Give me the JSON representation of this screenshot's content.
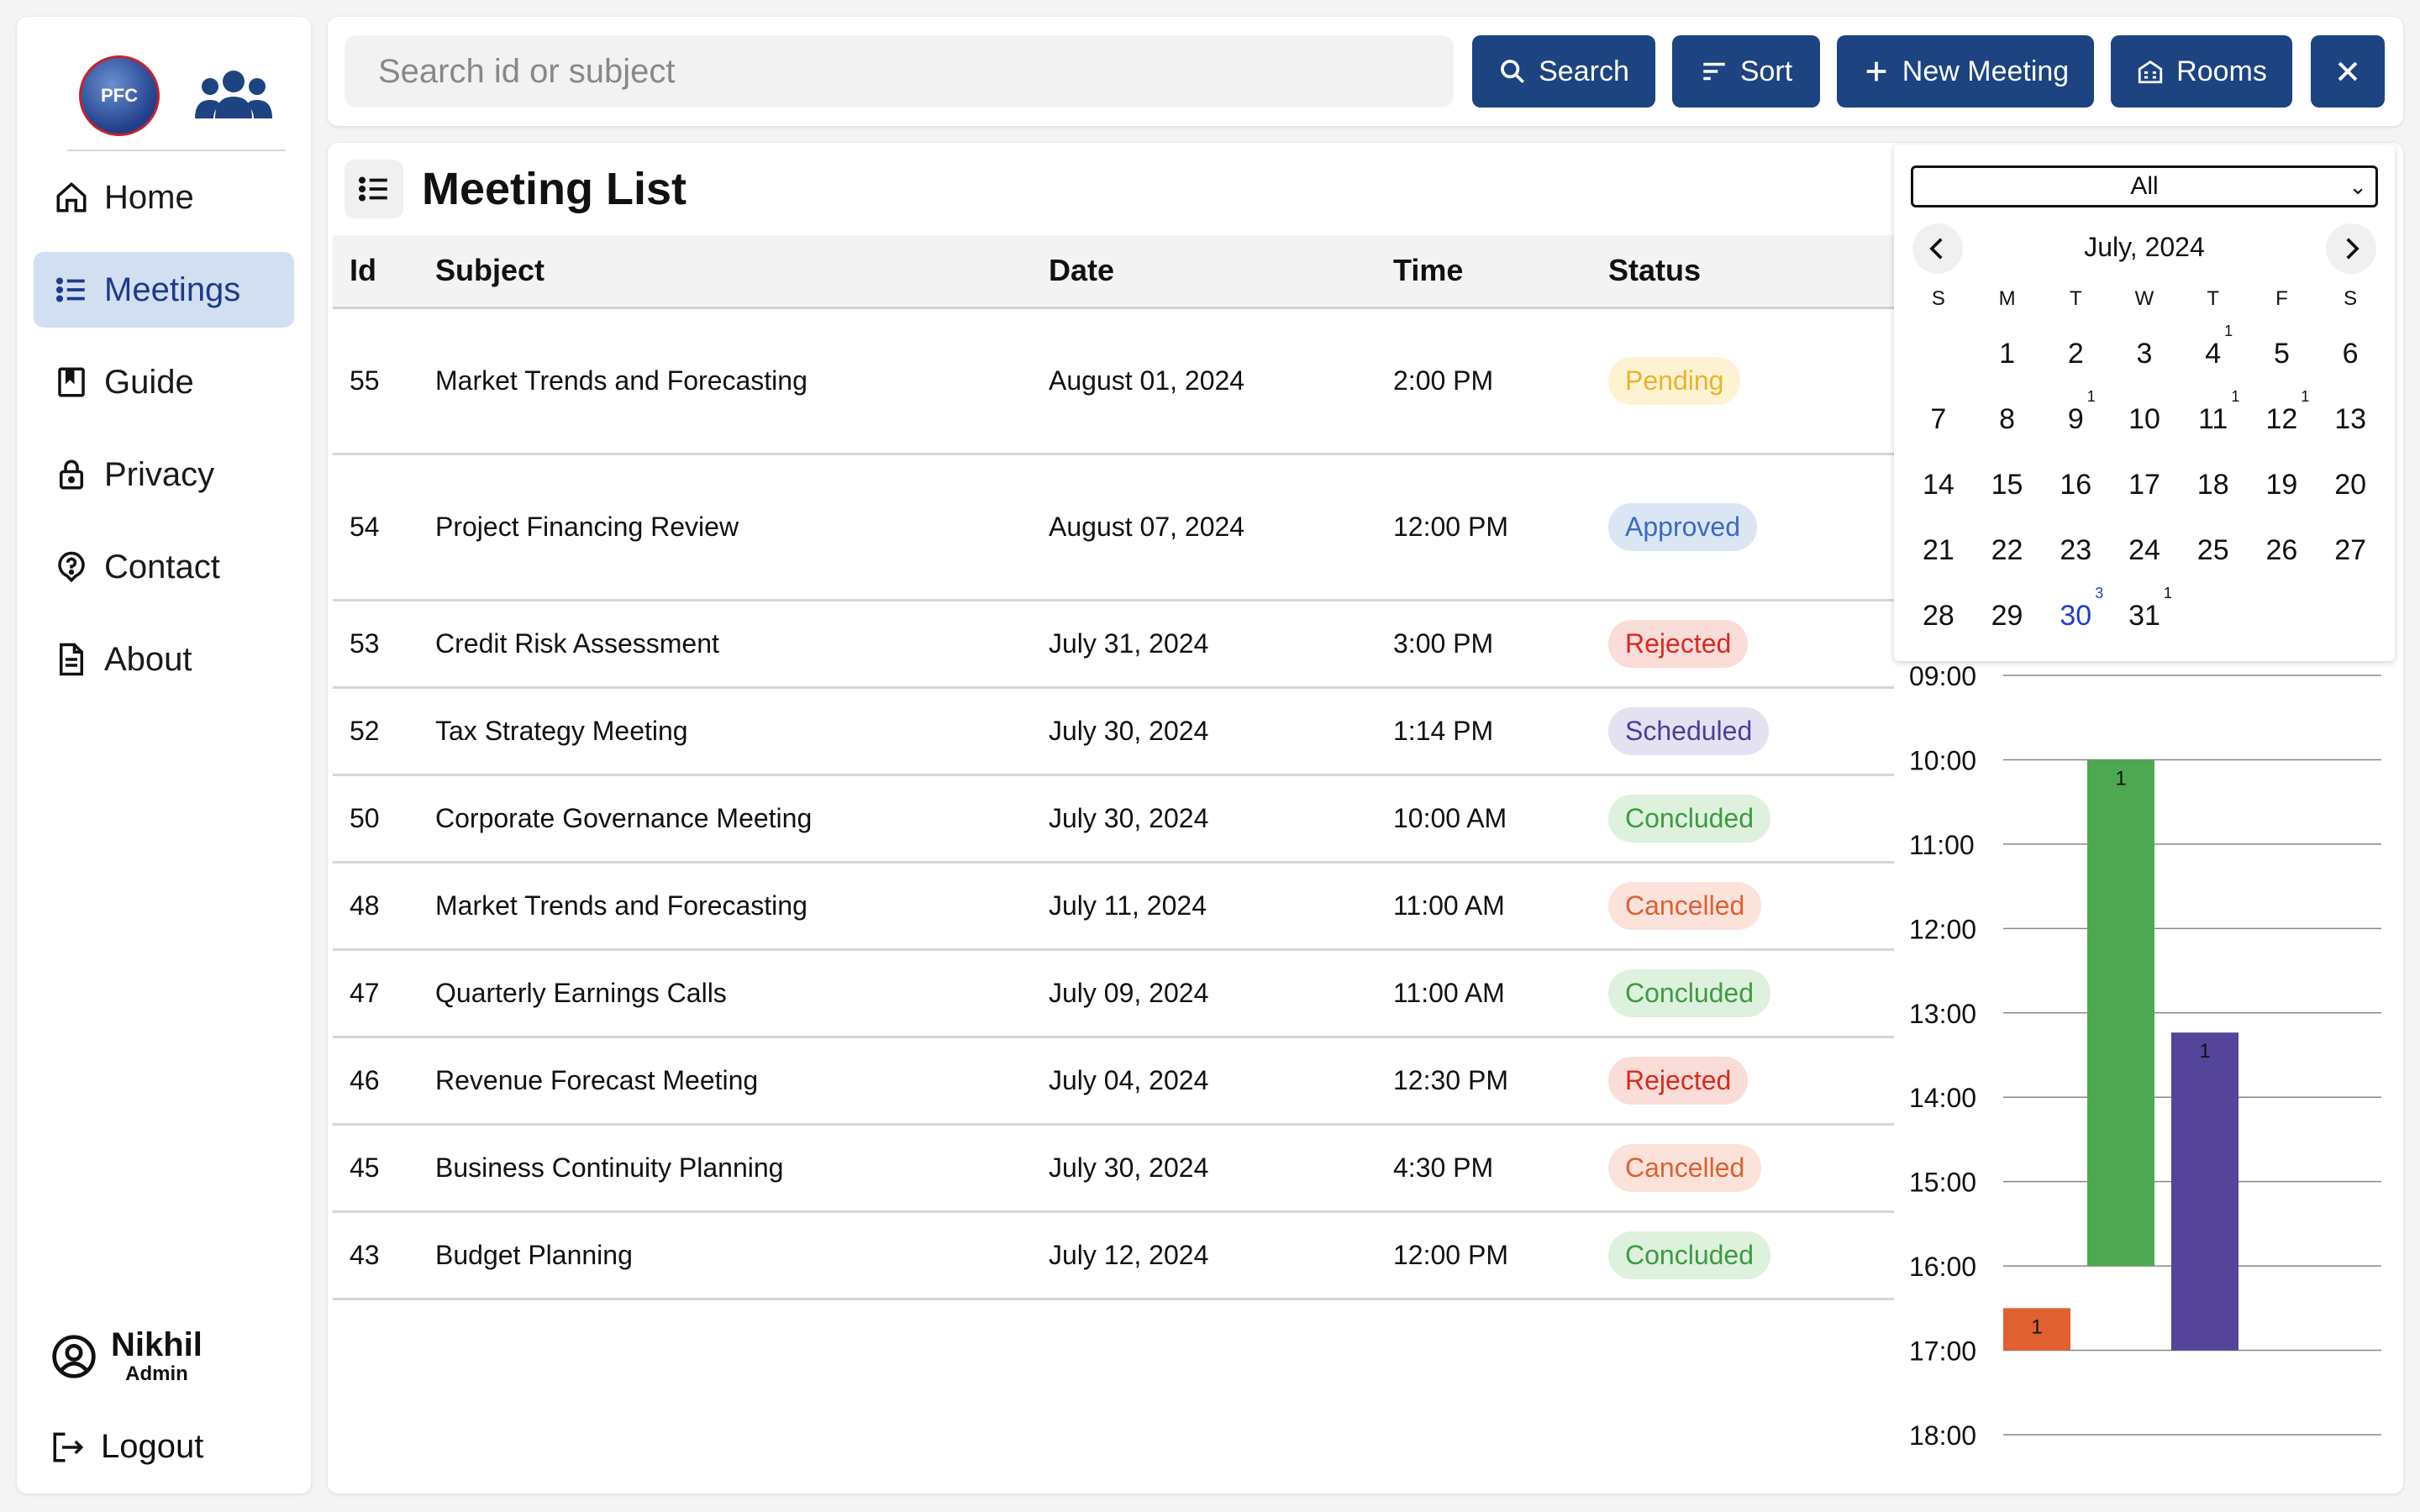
{
  "sidebar": {
    "nav": [
      {
        "label": "Home",
        "icon": "home-icon"
      },
      {
        "label": "Meetings",
        "icon": "list-icon"
      },
      {
        "label": "Guide",
        "icon": "book-icon"
      },
      {
        "label": "Privacy",
        "icon": "lock-icon"
      },
      {
        "label": "Contact",
        "icon": "help-icon"
      },
      {
        "label": "About",
        "icon": "document-icon"
      }
    ],
    "logo_text": "PFC",
    "user": {
      "name": "Nikhil",
      "role": "Admin"
    },
    "logout": "Logout"
  },
  "topbar": {
    "search_placeholder": "Search id or subject",
    "buttons": {
      "search": "Search",
      "sort": "Sort",
      "new_meeting": "New Meeting",
      "rooms": "Rooms"
    },
    "accent": "#1d4380"
  },
  "main": {
    "title": "Meeting List",
    "columns": [
      "Id",
      "Subject",
      "Date",
      "Time",
      "Status"
    ],
    "rows": [
      {
        "id": "55",
        "subject": "Market Trends and Forecasting",
        "date": "August 01, 2024",
        "time": "2:00 PM",
        "status": "Pending"
      },
      {
        "id": "54",
        "subject": "Project Financing Review",
        "date": "August 07, 2024",
        "time": "12:00 PM",
        "status": "Approved"
      },
      {
        "id": "53",
        "subject": "Credit Risk Assessment",
        "date": "July 31, 2024",
        "time": "3:00 PM",
        "status": "Rejected"
      },
      {
        "id": "52",
        "subject": "Tax Strategy Meeting",
        "date": "July 30, 2024",
        "time": "1:14 PM",
        "status": "Scheduled"
      },
      {
        "id": "50",
        "subject": "Corporate Governance Meeting",
        "date": "July 30, 2024",
        "time": "10:00 AM",
        "status": "Concluded"
      },
      {
        "id": "48",
        "subject": "Market Trends and Forecasting",
        "date": "July 11, 2024",
        "time": "11:00 AM",
        "status": "Cancelled"
      },
      {
        "id": "47",
        "subject": "Quarterly Earnings Calls",
        "date": "July 09, 2024",
        "time": "11:00 AM",
        "status": "Concluded"
      },
      {
        "id": "46",
        "subject": "Revenue Forecast Meeting",
        "date": "July 04, 2024",
        "time": "12:30 PM",
        "status": "Rejected"
      },
      {
        "id": "45",
        "subject": "Business Continuity Planning",
        "date": "July 30, 2024",
        "time": "4:30 PM",
        "status": "Cancelled"
      },
      {
        "id": "43",
        "subject": "Budget Planning",
        "date": "July 12, 2024",
        "time": "12:00 PM",
        "status": "Concluded"
      }
    ],
    "status_colors": {
      "Pending": {
        "bg": "#fdf3d3",
        "fg": "#e9b42a"
      },
      "Approved": {
        "bg": "#dbe6f4",
        "fg": "#3a6cbf"
      },
      "Rejected": {
        "bg": "#fadcd9",
        "fg": "#d62b20"
      },
      "Scheduled": {
        "bg": "#e4e1f1",
        "fg": "#4b3f99"
      },
      "Concluded": {
        "bg": "#ddf1dd",
        "fg": "#3f9a43"
      },
      "Cancelled": {
        "bg": "#fbe3dc",
        "fg": "#e0602f"
      }
    }
  },
  "calendar": {
    "filter": "All",
    "month_label": "July, 2024",
    "dow": [
      "S",
      "M",
      "T",
      "W",
      "T",
      "F",
      "S"
    ],
    "weeks": [
      [
        "",
        "1",
        "2",
        "3",
        "4",
        "5",
        "6"
      ],
      [
        "7",
        "8",
        "9",
        "10",
        "11",
        "12",
        "13"
      ],
      [
        "14",
        "15",
        "16",
        "17",
        "18",
        "19",
        "20"
      ],
      [
        "21",
        "22",
        "23",
        "24",
        "25",
        "26",
        "27"
      ],
      [
        "28",
        "29",
        "30",
        "31",
        "",
        "",
        ""
      ]
    ],
    "counts": {
      "4": "1",
      "9": "1",
      "11": "1",
      "12": "1",
      "30": "3",
      "31": "1"
    },
    "selected_day": "30"
  },
  "chart_data": {
    "type": "bar",
    "y_ticks": [
      "09:00",
      "10:00",
      "11:00",
      "12:00",
      "13:00",
      "14:00",
      "15:00",
      "16:00",
      "17:00",
      "18:00"
    ],
    "ylim": [
      "09:00",
      "18:00"
    ],
    "bars": [
      {
        "start": "16:30",
        "end": "17:00",
        "label": "1",
        "color": "#e0602f"
      },
      {
        "start": "10:00",
        "end": "16:00",
        "label": "1",
        "color": "#4ea852"
      },
      {
        "start": "13:14",
        "end": "17:00",
        "label": "1",
        "color": "#54449a"
      }
    ]
  }
}
